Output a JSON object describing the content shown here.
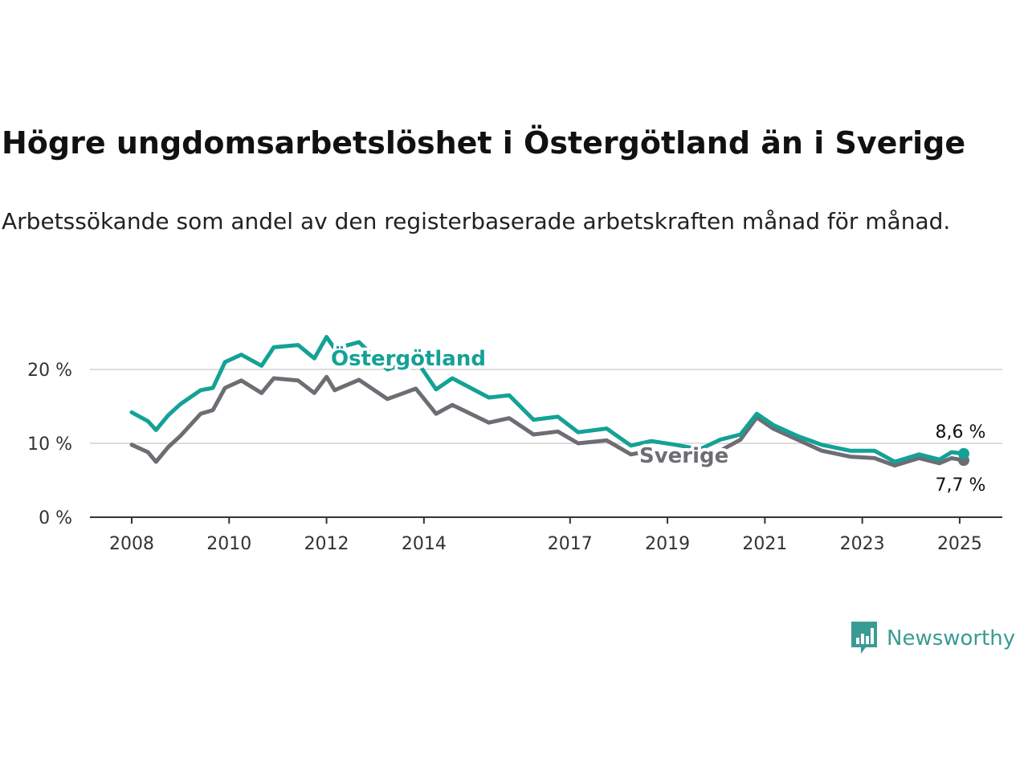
{
  "header": {
    "title": "Högre ungdomsarbetslöshet i Östergötland än i Sverige",
    "subtitle": "Arbetssökande som andel av den registerbaserade arbetskraften månad för månad."
  },
  "brand": {
    "name": "Newsworthy",
    "color": "#3a9b94",
    "icon": "bar-chart-speech-bubble-icon"
  },
  "colors": {
    "ostergotland": "#14a196",
    "sverige": "#6d6d73",
    "grid": "#dddddd",
    "axis": "#333333"
  },
  "chart_data": {
    "type": "line",
    "x_tick_labels": [
      "2008",
      "2010",
      "2012",
      "2014",
      "2017",
      "2019",
      "2021",
      "2023",
      "2025"
    ],
    "y_tick_labels": [
      "0 %",
      "10 %",
      "20 %"
    ],
    "ylim": [
      0,
      27
    ],
    "xlim": [
      "2008-01",
      "2025-02"
    ],
    "grid": "horizontal",
    "legend": "inline labels on lines",
    "series": [
      {
        "name": "Östergötland",
        "color": "#14a196",
        "end_label": "8,6 %",
        "points": [
          [
            "2008-01",
            14.2
          ],
          [
            "2008-05",
            13.0
          ],
          [
            "2008-07",
            11.8
          ],
          [
            "2008-10",
            13.8
          ],
          [
            "2009-01",
            15.3
          ],
          [
            "2009-06",
            17.2
          ],
          [
            "2009-09",
            17.5
          ],
          [
            "2009-12",
            21.0
          ],
          [
            "2010-04",
            22.0
          ],
          [
            "2010-09",
            20.5
          ],
          [
            "2010-12",
            23.0
          ],
          [
            "2011-06",
            23.3
          ],
          [
            "2011-10",
            21.5
          ],
          [
            "2012-01",
            24.4
          ],
          [
            "2012-03",
            22.8
          ],
          [
            "2012-09",
            23.7
          ],
          [
            "2013-04",
            20.0
          ],
          [
            "2013-11",
            21.3
          ],
          [
            "2014-04",
            17.3
          ],
          [
            "2014-08",
            18.8
          ],
          [
            "2015-05",
            16.2
          ],
          [
            "2015-10",
            16.5
          ],
          [
            "2016-04",
            13.2
          ],
          [
            "2016-10",
            13.6
          ],
          [
            "2017-03",
            11.5
          ],
          [
            "2017-10",
            12.0
          ],
          [
            "2018-04",
            9.7
          ],
          [
            "2018-09",
            10.3
          ],
          [
            "2019-03",
            9.8
          ],
          [
            "2019-09",
            9.2
          ],
          [
            "2020-02",
            10.5
          ],
          [
            "2020-07",
            11.2
          ],
          [
            "2020-11",
            14.0
          ],
          [
            "2021-03",
            12.5
          ],
          [
            "2021-09",
            11.0
          ],
          [
            "2022-03",
            9.8
          ],
          [
            "2022-10",
            9.0
          ],
          [
            "2023-04",
            9.0
          ],
          [
            "2023-09",
            7.5
          ],
          [
            "2024-03",
            8.5
          ],
          [
            "2024-08",
            7.8
          ],
          [
            "2024-11",
            8.8
          ],
          [
            "2025-02",
            8.6
          ]
        ]
      },
      {
        "name": "Sverige",
        "color": "#6d6d73",
        "end_label": "7,7 %",
        "points": [
          [
            "2008-01",
            9.8
          ],
          [
            "2008-05",
            8.8
          ],
          [
            "2008-07",
            7.5
          ],
          [
            "2008-10",
            9.5
          ],
          [
            "2009-01",
            11.0
          ],
          [
            "2009-06",
            14.0
          ],
          [
            "2009-09",
            14.5
          ],
          [
            "2009-12",
            17.5
          ],
          [
            "2010-04",
            18.5
          ],
          [
            "2010-09",
            16.8
          ],
          [
            "2010-12",
            18.8
          ],
          [
            "2011-06",
            18.5
          ],
          [
            "2011-10",
            16.8
          ],
          [
            "2012-01",
            19.0
          ],
          [
            "2012-03",
            17.2
          ],
          [
            "2012-09",
            18.6
          ],
          [
            "2013-04",
            16.0
          ],
          [
            "2013-11",
            17.4
          ],
          [
            "2014-04",
            14.0
          ],
          [
            "2014-08",
            15.2
          ],
          [
            "2015-05",
            12.8
          ],
          [
            "2015-10",
            13.4
          ],
          [
            "2016-04",
            11.2
          ],
          [
            "2016-10",
            11.6
          ],
          [
            "2017-03",
            10.0
          ],
          [
            "2017-10",
            10.4
          ],
          [
            "2018-04",
            8.5
          ],
          [
            "2018-09",
            9.0
          ],
          [
            "2019-03",
            8.5
          ],
          [
            "2019-09",
            8.0
          ],
          [
            "2020-02",
            9.0
          ],
          [
            "2020-07",
            10.5
          ],
          [
            "2020-11",
            13.5
          ],
          [
            "2021-03",
            12.0
          ],
          [
            "2021-09",
            10.5
          ],
          [
            "2022-03",
            9.0
          ],
          [
            "2022-10",
            8.2
          ],
          [
            "2023-04",
            8.0
          ],
          [
            "2023-09",
            7.0
          ],
          [
            "2024-03",
            8.0
          ],
          [
            "2024-08",
            7.3
          ],
          [
            "2024-11",
            8.0
          ],
          [
            "2025-02",
            7.7
          ]
        ]
      }
    ]
  }
}
